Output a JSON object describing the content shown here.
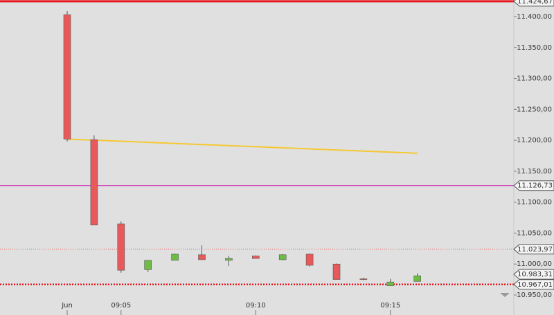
{
  "chart_data": {
    "type": "candlestick",
    "categories": [
      "Jun",
      null,
      "09:05",
      null,
      null,
      null,
      null,
      "09:10",
      null,
      null,
      null,
      null,
      "09:15",
      null
    ],
    "open": [
      11403,
      11201,
      11065,
      10991,
      11006,
      11015,
      11006,
      11013,
      11007,
      11016,
      11000,
      10976,
      10965,
      10972
    ],
    "high": [
      11409,
      11208,
      11069,
      11006,
      11017,
      11030,
      11013,
      11014,
      11016,
      11017,
      11001,
      10978,
      10976,
      10985
    ],
    "low": [
      11198,
      11063,
      10986,
      10987,
      11006,
      11007,
      10997,
      11009,
      11006,
      10996,
      10975,
      10974,
      10965,
      10972
    ],
    "close": [
      11202,
      11063,
      10990,
      11006,
      11016,
      11007,
      11009,
      11009,
      11015,
      10998,
      10975,
      10975,
      10971,
      10981
    ],
    "up_color": "#6dbd45",
    "down_color": "#e85a5a",
    "trend_line": {
      "color": "#f5c830",
      "values": [
        11202,
        null,
        null,
        null,
        null,
        null,
        null,
        null,
        null,
        null,
        null,
        null,
        null,
        11179
      ]
    },
    "levels": [
      {
        "value": 11424.67,
        "label": "11.424,67",
        "color": "#e8141b",
        "style": "thick"
      },
      {
        "value": 11126.73,
        "label": "11.126,73",
        "color": "#d020b0",
        "style": "thin"
      },
      {
        "value": 11023.97,
        "label": "11.023,97",
        "color": "#e05050",
        "style": "dotted"
      },
      {
        "value": 10983.31,
        "label": "10.983,31",
        "color": "#888888",
        "style": "none"
      },
      {
        "value": 10967.01,
        "label": "10.967,01",
        "color": "#e8141b",
        "style": "thick-dotted"
      }
    ],
    "ylim": [
      10930,
      11430
    ],
    "yticks": [
      {
        "value": 10950,
        "label": "10.950,00"
      },
      {
        "value": 11000,
        "label": "11.000,00"
      },
      {
        "value": 11050,
        "label": "11.050,00"
      },
      {
        "value": 11100,
        "label": "11.100,00"
      },
      {
        "value": 11150,
        "label": "11.150,00"
      },
      {
        "value": 11200,
        "label": "11.200,00"
      },
      {
        "value": 11250,
        "label": "11.250,00"
      },
      {
        "value": 11300,
        "label": "11.300,00"
      },
      {
        "value": 11350,
        "label": "11.350,00"
      },
      {
        "value": 11400,
        "label": "11.400,00"
      }
    ]
  }
}
